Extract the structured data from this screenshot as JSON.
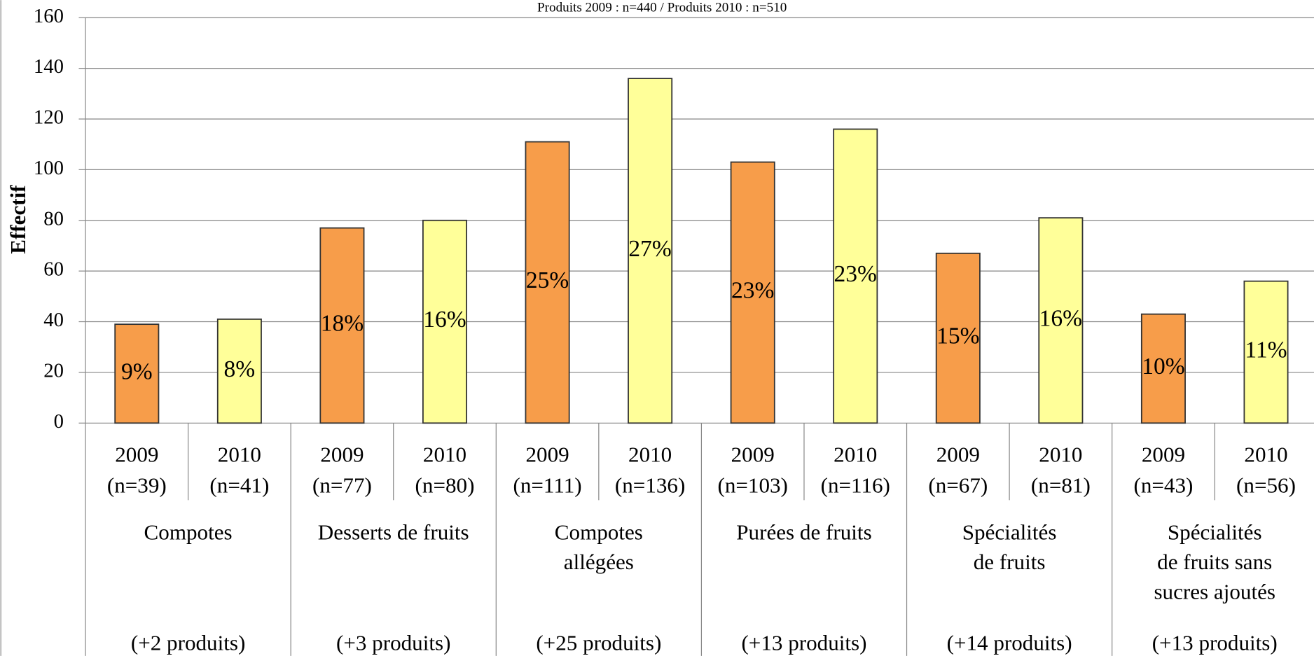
{
  "chart_data": {
    "type": "bar",
    "subtitle": "Produits 2009 : n=440  / Produits 2010 : n=510",
    "ylabel": "Effectif",
    "ylim": [
      0,
      160
    ],
    "yticks": [
      0,
      20,
      40,
      60,
      80,
      100,
      120,
      140,
      160
    ],
    "grid": true,
    "colors": [
      "#f79d4a",
      "#ffff99"
    ],
    "categories": [
      [
        "2009",
        "(n=39)"
      ],
      [
        "2010",
        "(n=41)"
      ],
      [
        "2009",
        "(n=77)"
      ],
      [
        "2010",
        "(n=80)"
      ],
      [
        "2009",
        "(n=111)"
      ],
      [
        "2010",
        "(n=136)"
      ],
      [
        "2009",
        "(n=103)"
      ],
      [
        "2010",
        "(n=116)"
      ],
      [
        "2009",
        "(n=67)"
      ],
      [
        "2010",
        "(n=81)"
      ],
      [
        "2009",
        "(n=43)"
      ],
      [
        "2010",
        "(n=56)"
      ]
    ],
    "values": [
      39,
      41,
      77,
      80,
      111,
      136,
      103,
      116,
      67,
      81,
      43,
      56
    ],
    "share_labels": [
      "9%",
      "8%",
      "18%",
      "16%",
      "25%",
      "27%",
      "23%",
      "23%",
      "15%",
      "16%",
      "10%",
      "11%"
    ],
    "groups": [
      {
        "name": [
          "Compotes"
        ],
        "note": "(+2 produits)"
      },
      {
        "name": [
          "Desserts de fruits"
        ],
        "note": "(+3 produits)"
      },
      {
        "name": [
          "Compotes",
          "allégées"
        ],
        "note": "(+25 produits)"
      },
      {
        "name": [
          "Purées de fruits"
        ],
        "note": "(+13 produits)"
      },
      {
        "name": [
          "Spécialités",
          "de fruits"
        ],
        "note": "(+14 produits)"
      },
      {
        "name": [
          "Spécialités",
          "de fruits sans",
          "sucres ajoutés"
        ],
        "note": "(+13 produits)"
      }
    ]
  }
}
